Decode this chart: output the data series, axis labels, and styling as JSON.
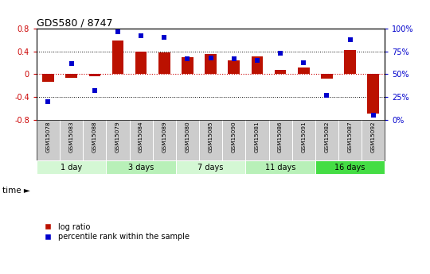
{
  "title": "GDS580 / 8747",
  "samples": [
    "GSM15078",
    "GSM15083",
    "GSM15088",
    "GSM15079",
    "GSM15084",
    "GSM15089",
    "GSM15080",
    "GSM15085",
    "GSM15090",
    "GSM15081",
    "GSM15086",
    "GSM15091",
    "GSM15082",
    "GSM15087",
    "GSM15092"
  ],
  "log_ratio": [
    -0.13,
    -0.07,
    -0.04,
    0.6,
    0.4,
    0.38,
    0.3,
    0.35,
    0.25,
    0.32,
    0.08,
    0.12,
    -0.08,
    0.42,
    -0.7
  ],
  "percentile_rank": [
    20,
    62,
    32,
    97,
    92,
    91,
    67,
    68,
    67,
    65,
    73,
    63,
    27,
    88,
    5
  ],
  "groups": [
    {
      "label": "1 day",
      "start": 0,
      "end": 3,
      "color": "#d4f7d4"
    },
    {
      "label": "3 days",
      "start": 3,
      "end": 6,
      "color": "#b8f0b8"
    },
    {
      "label": "7 days",
      "start": 6,
      "end": 9,
      "color": "#d4f7d4"
    },
    {
      "label": "11 days",
      "start": 9,
      "end": 12,
      "color": "#b8f0b8"
    },
    {
      "label": "16 days",
      "start": 12,
      "end": 15,
      "color": "#44dd44"
    }
  ],
  "bar_color": "#bb1100",
  "dot_color": "#0000cc",
  "ylim_left": [
    -0.8,
    0.8
  ],
  "ylim_right": [
    0,
    100
  ],
  "yticks_left": [
    -0.8,
    -0.4,
    0.0,
    0.4,
    0.8
  ],
  "ytick_labels_left": [
    "-0.8",
    "-0.4",
    "0",
    "0.4",
    "0.8"
  ],
  "yticks_right": [
    0,
    25,
    50,
    75,
    100
  ],
  "ytick_labels_right": [
    "0%",
    "25%",
    "50%",
    "75%",
    "100%"
  ],
  "hlines_dotted": [
    -0.4,
    0.4
  ],
  "hline_red": 0.0,
  "background_color": "#ffffff",
  "sample_label_bg": "#cccccc",
  "bar_width": 0.5
}
